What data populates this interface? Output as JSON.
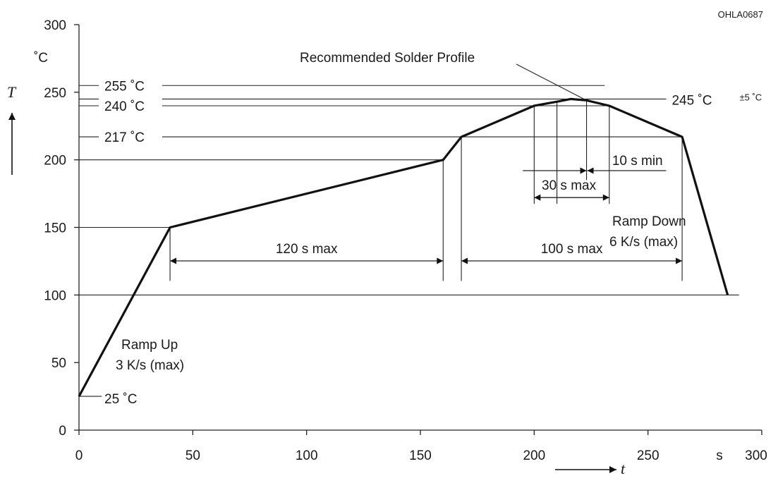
{
  "chart_data": {
    "type": "line",
    "code": "OHLA0687",
    "ylabel": "T",
    "yunit": "˚C",
    "xlabel": "t",
    "xunit": "s",
    "xlim": [
      0,
      300
    ],
    "ylim": [
      0,
      300
    ],
    "xticks": [
      0,
      50,
      100,
      150,
      200,
      250,
      300
    ],
    "yticks": [
      0,
      50,
      100,
      150,
      200,
      250,
      300
    ],
    "series": [
      {
        "x": [
          0,
          40,
          160,
          168,
          200,
          210,
          216,
          223,
          233,
          265,
          285
        ],
        "y": [
          25,
          150,
          200,
          217,
          240,
          243,
          245,
          244,
          240,
          217,
          100
        ]
      }
    ],
    "ref_lines": [
      {
        "y": 255,
        "label": "255 ˚C"
      },
      {
        "y": 240,
        "label": "240 ˚C"
      },
      {
        "y": 217,
        "label": "217 ˚C"
      },
      {
        "y": 25,
        "label": "25 ˚C"
      }
    ],
    "peak": {
      "y": 245,
      "label": "245 ˚C",
      "tolerance": "±5 ˚C"
    },
    "annotations": {
      "profile": "Recommended Solder Profile",
      "ramp_up": [
        "Ramp Up",
        "3 K/s (max)"
      ],
      "ramp_down": [
        "Ramp Down",
        "6 K/s (max)"
      ],
      "preheat": {
        "from": 40,
        "to": 160,
        "label": "120 s max"
      },
      "reflow": {
        "from": 168,
        "to": 265,
        "label": "100 s max"
      },
      "peak_window": {
        "from": 200,
        "to": 233,
        "label": "30 s max"
      },
      "peak_min": {
        "x": 223,
        "label": "10 s min"
      }
    }
  }
}
